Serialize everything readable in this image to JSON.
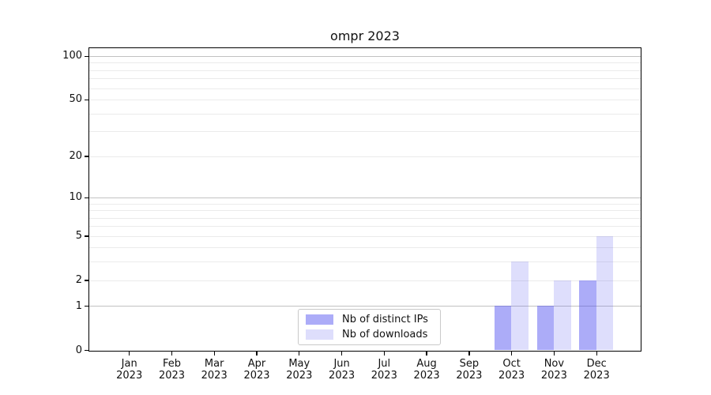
{
  "chart_data": {
    "type": "bar",
    "title": "ompr 2023",
    "x": [
      "Jan",
      "Feb",
      "Mar",
      "Apr",
      "May",
      "Jun",
      "Jul",
      "Aug",
      "Sep",
      "Oct",
      "Nov",
      "Dec"
    ],
    "x_year": "2023",
    "series": [
      {
        "name": "Nb of distinct IPs",
        "values": [
          0,
          0,
          0,
          0,
          0,
          0,
          0,
          0,
          0,
          1,
          1,
          2
        ]
      },
      {
        "name": "Nb of downloads",
        "values": [
          0,
          0,
          0,
          0,
          0,
          0,
          0,
          0,
          0,
          3,
          2,
          5
        ]
      }
    ],
    "yscale": "log1p",
    "ylim": [
      0,
      112
    ],
    "yticks": [
      0,
      1,
      2,
      5,
      10,
      20,
      50,
      100
    ],
    "gridlines": {
      "major": [
        1,
        10,
        100
      ],
      "minor": [
        2,
        3,
        4,
        5,
        6,
        7,
        8,
        9,
        20,
        30,
        40,
        50,
        60,
        70,
        80,
        90
      ]
    },
    "legend_position": "lower center",
    "grid": true
  },
  "colors": {
    "series": [
      "rgba(70,70,240,0.45)",
      "rgba(70,70,240,0.18)"
    ],
    "grid_major": "#c2c2c2",
    "grid_minor": "#ebebeb",
    "spine": "#000000",
    "legend_border": "#c9c9c9",
    "text": "#111111",
    "background": "#ffffff"
  }
}
